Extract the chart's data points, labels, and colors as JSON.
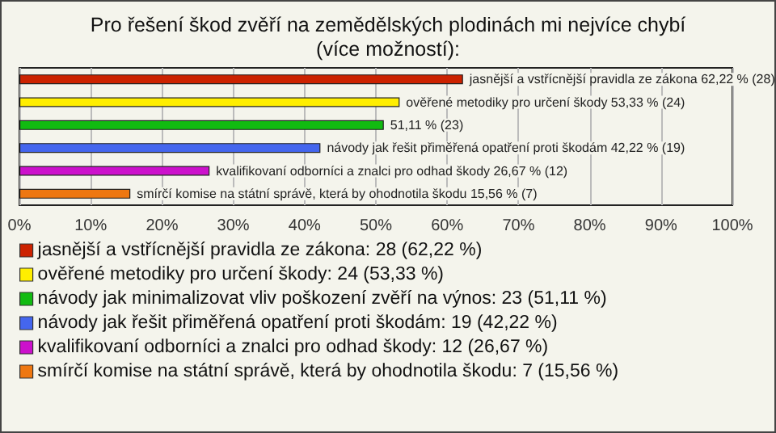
{
  "chart_data": {
    "type": "bar",
    "orientation": "horizontal",
    "stacked": true,
    "title": "Pro řešení škod zvěří na zemědělských plodinách mi nejvíce chybí\n(více možností):",
    "categories": [
      null,
      null,
      null,
      null,
      null,
      null
    ],
    "series": [
      {
        "name": "jasnější a vstřícnější pravidla ze zákona: 28 (62,22 %)",
        "color": "#cc2200",
        "values": [
          62.22,
          null,
          null,
          null,
          null,
          null
        ],
        "value_labels": [
          "jasnější a vstřícnější pravidla ze zákona 62,22 % (28)",
          null,
          null,
          null,
          null,
          null
        ]
      },
      {
        "name": "ověřené metodiky pro určení škody: 24 (53,33 %)",
        "color": "#ffee00",
        "values": [
          null,
          53.33,
          null,
          null,
          null,
          null
        ],
        "value_labels": [
          null,
          "ověřené metodiky pro určení škody 53,33 % (24)",
          null,
          null,
          null,
          null
        ]
      },
      {
        "name": "návody jak minimalizovat vliv poškození zvěří na výnos: 23 (51,11 %)",
        "color": "#11bb11",
        "values": [
          null,
          null,
          51.11,
          null,
          null,
          null
        ],
        "value_labels": [
          null,
          null,
          "51,11 % (23)",
          null,
          null,
          null
        ]
      },
      {
        "name": "návody jak řešit přiměřená opatření proti škodám: 19 (42,22 %)",
        "color": "#4466ee",
        "values": [
          null,
          null,
          null,
          42.22,
          null,
          null
        ],
        "value_labels": [
          null,
          null,
          null,
          "návody jak řešit přiměřená opatření proti škodám 42,22 % (19)",
          null,
          null
        ]
      },
      {
        "name": "kvalifikovaní odborníci a znalci pro odhad škody: 12 (26,67 %)",
        "color": "#cc11cc",
        "values": [
          null,
          null,
          null,
          null,
          26.67,
          null
        ],
        "value_labels": [
          null,
          null,
          null,
          null,
          "kvalifikovaní odborníci a znalci pro odhad škody 26,67 % (12)",
          null
        ]
      },
      {
        "name": "smírčí komise na státní správě, která by ohodnotila škodu: 7 (15,56 %)",
        "color": "#ee7711",
        "values": [
          null,
          null,
          null,
          null,
          null,
          15.56
        ],
        "value_labels": [
          null,
          null,
          null,
          null,
          null,
          "smírčí komise na státní správě, která by ohodnotila škodu 15,56 % (7)"
        ]
      }
    ],
    "xlim": [
      0,
      100
    ],
    "xticks": [
      {
        "value": 0,
        "label": "0%"
      },
      {
        "value": 10,
        "label": "10%"
      },
      {
        "value": 20,
        "label": "20%"
      },
      {
        "value": 30,
        "label": "30%"
      },
      {
        "value": 40,
        "label": "40%"
      },
      {
        "value": 50,
        "label": "50%"
      },
      {
        "value": 60,
        "label": "60%"
      },
      {
        "value": 70,
        "label": "70%"
      },
      {
        "value": 80,
        "label": "80%"
      },
      {
        "value": 90,
        "label": "90%"
      },
      {
        "value": 100,
        "label": "100%"
      }
    ],
    "grid": "x",
    "legend": "bottom"
  }
}
